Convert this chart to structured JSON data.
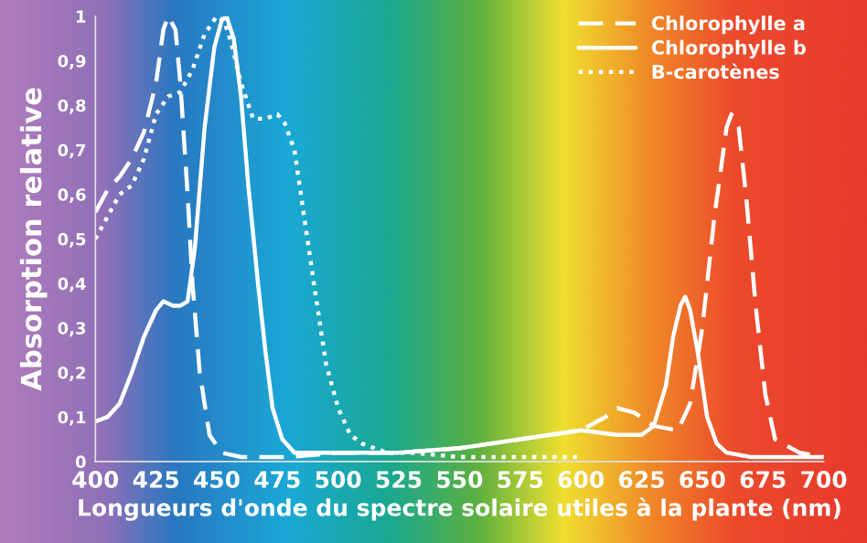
{
  "chart_data": {
    "type": "line",
    "xlabel": "Longueurs d'onde du spectre solaire utiles à la plante (nm)",
    "ylabel": "Absorption relative",
    "xlim": [
      400,
      700
    ],
    "xticks": [
      400,
      425,
      450,
      475,
      500,
      525,
      550,
      575,
      600,
      625,
      650,
      675,
      700
    ],
    "ylim": [
      0,
      1
    ],
    "yticks": [
      0,
      {
        "value": 0.1,
        "label": "0,1"
      },
      {
        "value": 0.2,
        "label": "0,2"
      },
      {
        "value": 0.3,
        "label": "0,3"
      },
      {
        "value": 0.4,
        "label": "0,4"
      },
      {
        "value": 0.5,
        "label": "0,5"
      },
      {
        "value": 0.6,
        "label": "0,6"
      },
      {
        "value": 0.7,
        "label": "0,7"
      },
      {
        "value": 0.8,
        "label": "0,8"
      },
      {
        "value": 0.9,
        "label": "0,9"
      },
      1
    ],
    "grid": false,
    "legend": "top right",
    "marker": "none",
    "series": [
      {
        "name": "Chlorophylle a",
        "color": "#ffffff",
        "line_style": "dashed",
        "x": [
          400,
          405,
          410,
          415,
          420,
          425,
          428,
          430,
          433,
          435,
          438,
          440,
          443,
          447,
          452,
          460,
          480,
          500,
          525,
          550,
          575,
          600,
          610,
          615,
          622,
          630,
          640,
          645,
          650,
          655,
          660,
          662,
          665,
          668,
          672,
          676,
          680,
          690,
          700
        ],
        "values": [
          0.56,
          0.61,
          0.64,
          0.68,
          0.74,
          0.85,
          0.97,
          1.0,
          0.97,
          0.85,
          0.6,
          0.4,
          0.2,
          0.06,
          0.02,
          0.01,
          0.01,
          0.02,
          0.02,
          0.03,
          0.05,
          0.07,
          0.1,
          0.12,
          0.11,
          0.08,
          0.07,
          0.13,
          0.3,
          0.55,
          0.75,
          0.78,
          0.75,
          0.6,
          0.35,
          0.15,
          0.05,
          0.02,
          0.01
        ]
      },
      {
        "name": "Chlorophylle b",
        "color": "#ffffff",
        "line_style": "solid",
        "x": [
          400,
          405,
          410,
          415,
          420,
          425,
          428,
          432,
          435,
          438,
          441,
          445,
          449,
          452,
          454,
          457,
          460,
          463,
          467,
          470,
          473,
          477,
          482,
          490,
          500,
          525,
          550,
          575,
          600,
          615,
          625,
          630,
          635,
          638,
          641,
          643,
          645,
          648,
          652,
          656,
          660,
          670,
          680,
          700
        ],
        "values": [
          0.09,
          0.1,
          0.13,
          0.2,
          0.28,
          0.34,
          0.36,
          0.35,
          0.35,
          0.36,
          0.48,
          0.75,
          0.93,
          0.99,
          1.0,
          0.95,
          0.82,
          0.62,
          0.4,
          0.25,
          0.12,
          0.05,
          0.02,
          0.02,
          0.02,
          0.02,
          0.03,
          0.05,
          0.07,
          0.06,
          0.06,
          0.08,
          0.17,
          0.28,
          0.35,
          0.37,
          0.34,
          0.25,
          0.1,
          0.04,
          0.02,
          0.01,
          0.01,
          0.01
        ]
      },
      {
        "name": "B-carotènes",
        "color": "#ffffff",
        "line_style": "dotted",
        "x": [
          400,
          405,
          410,
          415,
          420,
          425,
          430,
          435,
          440,
          445,
          450,
          453,
          456,
          460,
          465,
          470,
          475,
          478,
          482,
          486,
          490,
          495,
          500,
          505,
          510,
          520,
          530,
          550,
          575,
          600
        ],
        "values": [
          0.5,
          0.55,
          0.6,
          0.62,
          0.68,
          0.78,
          0.82,
          0.83,
          0.88,
          0.96,
          1.0,
          0.99,
          0.94,
          0.85,
          0.77,
          0.77,
          0.78,
          0.76,
          0.7,
          0.55,
          0.4,
          0.22,
          0.12,
          0.06,
          0.04,
          0.02,
          0.02,
          0.01,
          0.01,
          0.01
        ]
      }
    ]
  }
}
